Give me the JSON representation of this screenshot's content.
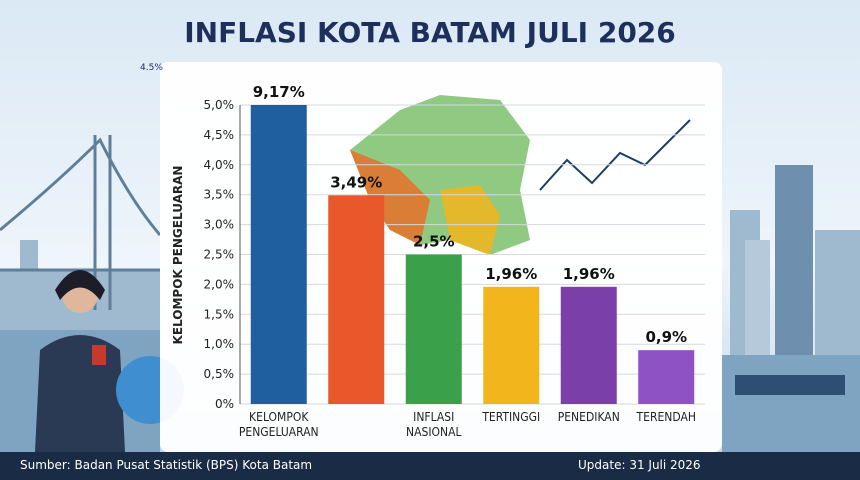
{
  "chart_data": {
    "type": "bar",
    "title": "INFLASI KOTA BATAM JULI 2026",
    "annotation": "4.5%",
    "ylabel": "KELOMPOK PENGELUARAN",
    "categories": [
      "KELOMPOK PENGELUARAN",
      null,
      "INFLASI NASIONAL",
      "TERTINGGI",
      "PENEDIKAN",
      "TERENDAH"
    ],
    "values": [
      9.17,
      3.49,
      2.5,
      1.96,
      1.96,
      0.9
    ],
    "value_labels": [
      "9,17%",
      "3,49%",
      "2,5%",
      "1,96%",
      "1,96%",
      "0,9%"
    ],
    "colors": [
      "#1f5fa0",
      "#e8582a",
      "#3aa04a",
      "#f2b51c",
      "#7a3fa8",
      "#8f52c4"
    ],
    "ylim": [
      0,
      5
    ],
    "yticks": [
      {
        "value": 0,
        "label": "0%"
      },
      {
        "value": 0.5,
        "label": "0,5%"
      },
      {
        "value": 1,
        "label": "1,0%"
      },
      {
        "value": 1.5,
        "label": "1,5%"
      },
      {
        "value": 2,
        "label": "2,0%"
      },
      {
        "value": 2.5,
        "label": "2,5%"
      },
      {
        "value": 3,
        "label": "3,0%"
      },
      {
        "value": 3.5,
        "label": "3,5%"
      },
      {
        "value": 4,
        "label": "4,0%"
      },
      {
        "value": 4.5,
        "label": "4,5%"
      },
      {
        "value": 5,
        "label": "5,0%"
      }
    ],
    "grid": true,
    "source": "Sumber: Badan Pusat Statistik (BPS) Kota Batam",
    "update": "Update: 31 Juli 2026"
  }
}
